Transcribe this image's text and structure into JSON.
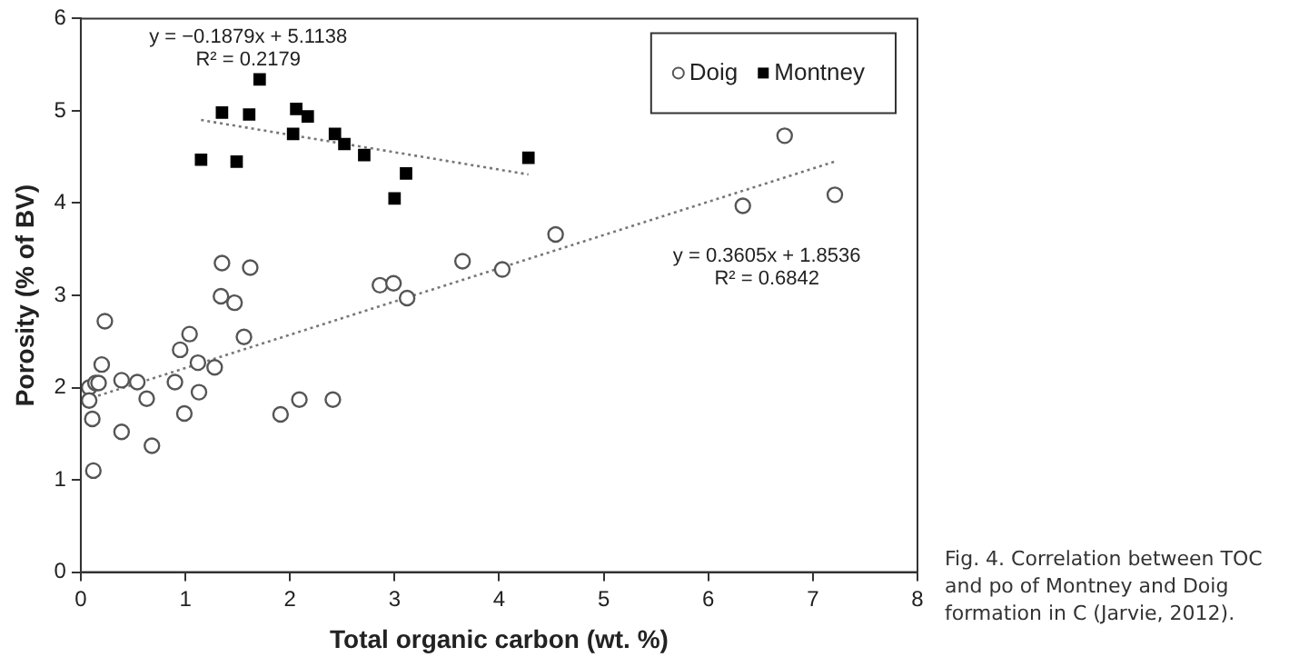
{
  "chart_data": {
    "type": "scatter",
    "xlabel": "Total organic carbon (wt. %)",
    "ylabel": "Porosity (% of BV)",
    "xlim": [
      0,
      8
    ],
    "xticks": [
      0,
      1,
      2,
      3,
      4,
      5,
      6,
      7,
      8
    ],
    "ylim": [
      0,
      6
    ],
    "yticks": [
      0,
      1,
      2,
      3,
      4,
      5,
      6
    ],
    "grid": false,
    "legend": "top right",
    "series": [
      {
        "name": "Doig",
        "marker": "circle",
        "color": "#555555",
        "x": [
          0.23,
          0.2,
          0.08,
          0.14,
          0.17,
          0.08,
          0.11,
          0.12,
          0.39,
          0.54,
          0.39,
          0.63,
          0.68,
          0.9,
          0.95,
          1.04,
          0.99,
          1.12,
          1.13,
          1.28,
          1.56,
          1.91,
          2.09,
          2.41,
          1.35,
          1.34,
          1.47,
          1.62,
          2.86,
          2.99,
          3.12,
          3.65,
          4.03,
          4.54,
          6.33,
          6.73,
          7.21
        ],
        "values": [
          2.72,
          2.25,
          2.0,
          2.05,
          2.05,
          1.86,
          1.66,
          1.1,
          2.08,
          2.06,
          1.52,
          1.88,
          1.37,
          2.06,
          2.41,
          2.58,
          1.72,
          2.27,
          1.95,
          2.22,
          2.55,
          1.71,
          1.87,
          1.87,
          3.35,
          2.99,
          2.92,
          3.3,
          3.11,
          3.13,
          2.97,
          3.37,
          3.28,
          3.66,
          3.97,
          4.73,
          4.09
        ]
      },
      {
        "name": "Montney",
        "marker": "square",
        "color": "#000000",
        "x": [
          1.15,
          1.35,
          1.49,
          1.61,
          1.71,
          2.03,
          2.06,
          2.17,
          2.43,
          2.52,
          2.71,
          3.0,
          3.11,
          4.28
        ],
        "values": [
          4.47,
          4.98,
          4.45,
          4.96,
          5.34,
          4.75,
          5.02,
          4.94,
          4.75,
          4.64,
          4.52,
          4.05,
          4.32,
          4.49
        ]
      },
      {
        "type": "line",
        "marker": "none",
        "line_style": "dotted",
        "color": "#777777",
        "x": [
          1.15,
          4.28
        ],
        "values": [
          4.9,
          4.31
        ]
      },
      {
        "type": "line",
        "marker": "none",
        "line_style": "dotted",
        "color": "#777777",
        "x": [
          0.05,
          7.21
        ],
        "values": [
          1.87,
          4.45
        ]
      }
    ],
    "annotations": [
      "y = −0.1879x + 5.1138",
      "R² = 0.2179",
      "y = 0.3605x + 1.8536",
      "R² = 0.6842",
      "Fig. 4. Correlation between TOC and po of Montney and Doig formation in C (Jarvie, 2012)."
    ]
  }
}
